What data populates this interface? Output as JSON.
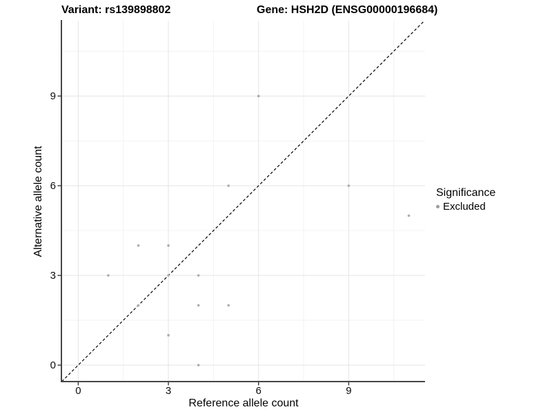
{
  "title": {
    "variant": "Variant: rs139898802",
    "gene": "Gene: HSH2D (ENSG00000196684)"
  },
  "legend": {
    "title": "Significance",
    "items": [
      {
        "label": "Excluded",
        "color": "#9c9c9c"
      }
    ]
  },
  "chart_data": {
    "type": "scatter",
    "title": "Variant: rs139898802  Gene: HSH2D (ENSG00000196684)",
    "xlabel": "Reference allele count",
    "ylabel": "Alternative allele count",
    "xlim": [
      -0.56,
      11.54
    ],
    "ylim": [
      -0.55,
      11.52
    ],
    "x_major_ticks": [
      0,
      3,
      6,
      9
    ],
    "y_major_ticks": [
      0,
      3,
      6,
      9
    ],
    "x_minor_ticks": [
      1.5,
      4.5,
      7.5,
      10.5
    ],
    "y_minor_ticks": [
      1.5,
      4.5,
      7.5,
      10.5
    ],
    "grid": true,
    "legend_position": "right",
    "series": [
      {
        "name": "Excluded",
        "color": "#acacac",
        "points": [
          [
            1,
            3
          ],
          [
            2,
            2
          ],
          [
            2,
            4
          ],
          [
            3,
            1
          ],
          [
            3,
            3
          ],
          [
            3,
            4
          ],
          [
            4,
            0
          ],
          [
            4,
            2
          ],
          [
            4,
            3
          ],
          [
            5,
            2
          ],
          [
            5,
            6
          ],
          [
            6,
            9
          ],
          [
            9,
            6
          ],
          [
            11,
            5
          ]
        ]
      }
    ],
    "identity_line": {
      "style": "dashed",
      "from": [
        -0.55,
        -0.55
      ],
      "to": [
        11.52,
        11.52
      ]
    }
  },
  "style": {
    "point_color": "#acacac",
    "grid_major_color": "#e4e4e4",
    "grid_minor_color": "#f2f2f2",
    "axis_color": "#454545",
    "tick_color": "#333333",
    "text_color": "#0d0d0d",
    "identity_line_color": "#000000"
  }
}
